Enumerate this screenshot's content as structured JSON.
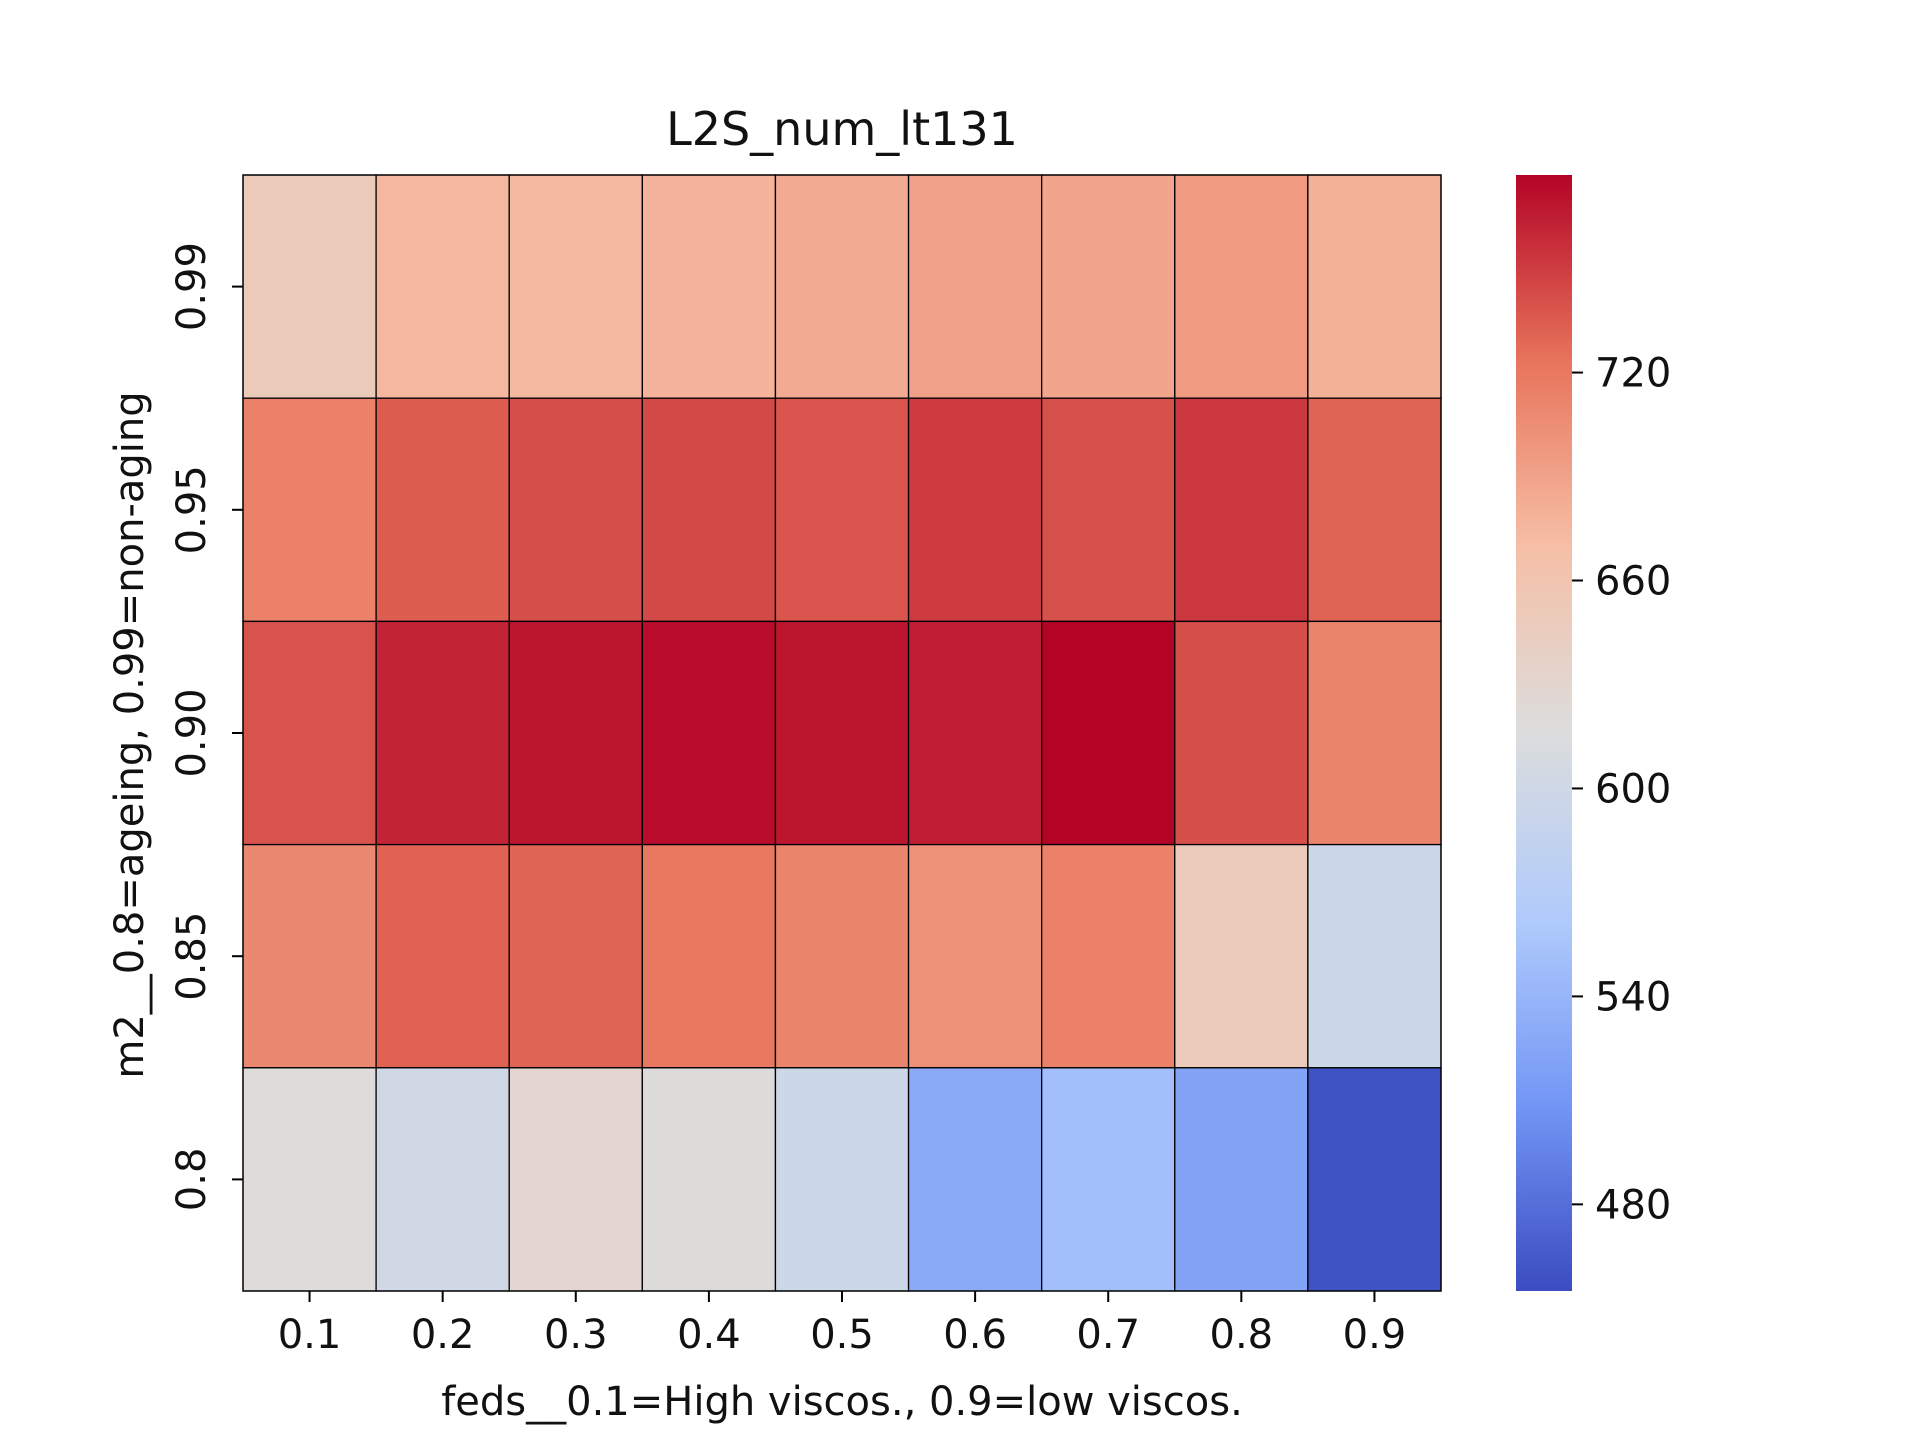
{
  "chart_data": {
    "type": "heatmap",
    "title": "L2S_num_lt131",
    "xlabel": "feds__0.1=High viscos., 0.9=low viscos.",
    "ylabel": "m2__0.8=ageing, 0.99=non-aging",
    "x_categories": [
      "0.1",
      "0.2",
      "0.3",
      "0.4",
      "0.5",
      "0.6",
      "0.7",
      "0.8",
      "0.9"
    ],
    "y_categories": [
      "0.99",
      "0.95",
      "0.90",
      "0.85",
      "0.8"
    ],
    "values": [
      [
        650,
        675,
        674,
        678,
        684,
        692,
        688,
        696,
        680
      ],
      [
        714,
        734,
        741,
        744,
        738,
        751,
        740,
        752,
        731
      ],
      [
        739,
        762,
        769,
        773,
        769,
        764,
        780,
        741,
        712
      ],
      [
        708,
        732,
        731,
        720,
        712,
        702,
        714,
        650,
        597
      ],
      [
        618,
        602,
        630,
        619,
        597,
        529,
        550,
        522,
        460
      ]
    ],
    "colorbar": {
      "colormap": "coolwarm",
      "vmin": 455,
      "vmax": 777,
      "ticks": [
        "480",
        "540",
        "600",
        "660",
        "720"
      ],
      "colormap_stops": [
        "#3b4cc0",
        "#7396f5",
        "#b0cbfb",
        "#dcdddd",
        "#f6bfa6",
        "#e7745b",
        "#b40426"
      ]
    },
    "grid": false
  }
}
